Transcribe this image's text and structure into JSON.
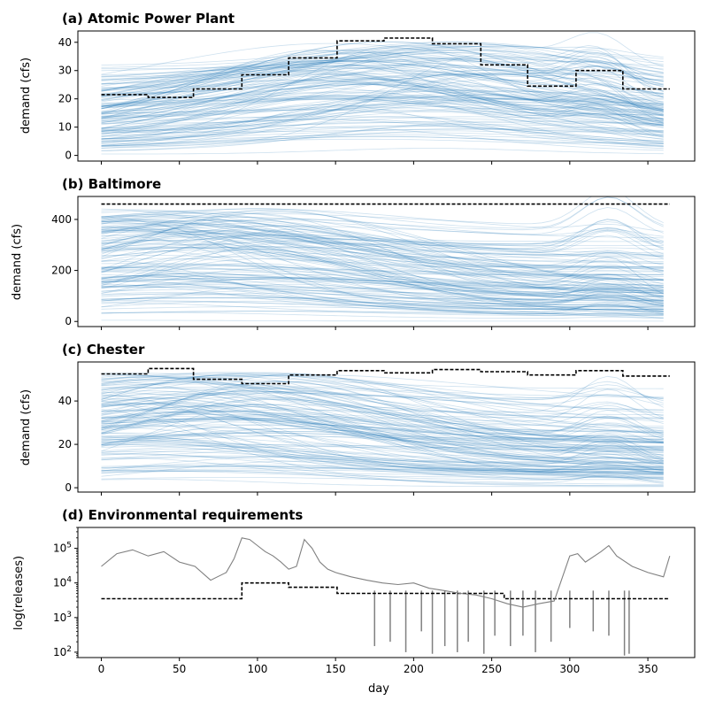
{
  "figure": {
    "colors": {
      "ensemble": "#1f77b4",
      "releases": "#808080",
      "requirement": "#000000"
    }
  },
  "chart_data": [
    {
      "type": "line",
      "title": "(a) Atomic Power Plant",
      "xlabel": "",
      "ylabel": "demand (cfs)",
      "xlim": [
        -15,
        380
      ],
      "ylim": [
        -2,
        44
      ],
      "xticks": [
        0,
        50,
        100,
        150,
        200,
        250,
        300,
        350
      ],
      "yticks": [
        0,
        10,
        20,
        30,
        40
      ],
      "show_xtick_labels": false,
      "grid": false,
      "series": [
        {
          "style": "dashed",
          "color": "#000000",
          "x": [
            0,
            30,
            30,
            59,
            59,
            90,
            90,
            120,
            120,
            151,
            151,
            181,
            181,
            212,
            212,
            243,
            243,
            273,
            273,
            304,
            304,
            334,
            334,
            364
          ],
          "y": [
            21.5,
            21.5,
            20.5,
            20.5,
            23.5,
            23.5,
            28.5,
            28.5,
            34.5,
            34.5,
            40.5,
            40.5,
            41.5,
            41.5,
            39.5,
            39.5,
            32,
            32,
            24.5,
            24.5,
            30,
            30,
            23.5,
            23.5
          ]
        }
      ],
      "ensemble": {
        "count": 140,
        "color": "#1f77b4",
        "x_range": [
          0,
          364
        ],
        "peak_day": 190,
        "late_bump_day": 318
      }
    },
    {
      "type": "line",
      "title": "(b) Baltimore",
      "xlabel": "",
      "ylabel": "demand (cfs)",
      "xlim": [
        -15,
        380
      ],
      "ylim": [
        -20,
        490
      ],
      "xticks": [
        0,
        50,
        100,
        150,
        200,
        250,
        300,
        350
      ],
      "yticks": [
        0,
        200,
        400
      ],
      "show_xtick_labels": false,
      "grid": false,
      "series": [
        {
          "style": "dashed",
          "color": "#000000",
          "x": [
            0,
            364
          ],
          "y": [
            460,
            460
          ]
        }
      ],
      "ensemble": {
        "count": 140,
        "color": "#1f77b4",
        "x_range": [
          0,
          364
        ],
        "peak_day": 60,
        "late_bump_day": 325
      }
    },
    {
      "type": "line",
      "title": "(c) Chester",
      "xlabel": "",
      "ylabel": "demand (cfs)",
      "xlim": [
        -15,
        380
      ],
      "ylim": [
        -2,
        58
      ],
      "xticks": [
        0,
        50,
        100,
        150,
        200,
        250,
        300,
        350
      ],
      "yticks": [
        0,
        20,
        40
      ],
      "show_xtick_labels": false,
      "grid": false,
      "series": [
        {
          "style": "dashed",
          "color": "#000000",
          "x": [
            0,
            30,
            30,
            59,
            59,
            90,
            90,
            120,
            120,
            151,
            151,
            181,
            181,
            212,
            212,
            243,
            243,
            273,
            273,
            304,
            304,
            334,
            334,
            364
          ],
          "y": [
            52.5,
            52.5,
            55,
            55,
            50,
            50,
            48,
            48,
            52,
            52,
            54,
            54,
            53,
            53,
            54.5,
            54.5,
            53.5,
            53.5,
            52,
            52,
            54,
            54,
            51.5,
            51.5
          ]
        }
      ],
      "ensemble": {
        "count": 140,
        "color": "#1f77b4",
        "x_range": [
          0,
          364
        ],
        "peak_day": 60,
        "late_bump_day": 325
      }
    },
    {
      "type": "line",
      "title": "(d) Environmental requirements",
      "xlabel": "day",
      "ylabel": "log(releases)",
      "xlim": [
        -15,
        380
      ],
      "ylim": [
        70,
        400000
      ],
      "yscale": "log",
      "xticks": [
        0,
        50,
        100,
        150,
        200,
        250,
        300,
        350
      ],
      "yticks": [
        100,
        1000,
        10000,
        100000
      ],
      "ytick_labels": [
        {
          "base": "10",
          "exp": "2"
        },
        {
          "base": "10",
          "exp": "3"
        },
        {
          "base": "10",
          "exp": "4"
        },
        {
          "base": "10",
          "exp": "5"
        }
      ],
      "show_xtick_labels": true,
      "grid": false,
      "series": [
        {
          "style": "dashed",
          "color": "#000000",
          "x": [
            0,
            90,
            90,
            120,
            120,
            151,
            151,
            258,
            258,
            364
          ],
          "y": [
            3500,
            3500,
            10000,
            10000,
            7500,
            7500,
            5000,
            5000,
            3500,
            3500
          ]
        },
        {
          "style": "solid",
          "color": "#808080",
          "x": [
            0,
            10,
            20,
            30,
            40,
            50,
            60,
            70,
            80,
            85,
            90,
            95,
            100,
            105,
            110,
            115,
            120,
            125,
            130,
            135,
            140,
            145,
            150,
            160,
            170,
            180,
            190,
            200,
            210,
            220,
            230,
            240,
            250,
            260,
            270,
            280,
            290,
            300,
            305,
            310,
            320,
            325,
            330,
            340,
            350,
            360,
            364
          ],
          "y": [
            30000,
            70000,
            90000,
            60000,
            80000,
            40000,
            30000,
            12000,
            20000,
            50000,
            200000,
            180000,
            120000,
            80000,
            60000,
            40000,
            25000,
            30000,
            180000,
            100000,
            40000,
            25000,
            20000,
            15000,
            12000,
            10000,
            9000,
            10000,
            7000,
            6000,
            5000,
            4500,
            3500,
            2500,
            2000,
            2500,
            3000,
            60000,
            70000,
            40000,
            80000,
            120000,
            60000,
            30000,
            20000,
            15000,
            60000
          ]
        }
      ],
      "dips": [
        {
          "x": 175,
          "low": 150
        },
        {
          "x": 185,
          "low": 200
        },
        {
          "x": 195,
          "low": 100
        },
        {
          "x": 205,
          "low": 400
        },
        {
          "x": 212,
          "low": 90
        },
        {
          "x": 220,
          "low": 150
        },
        {
          "x": 228,
          "low": 100
        },
        {
          "x": 235,
          "low": 200
        },
        {
          "x": 245,
          "low": 90
        },
        {
          "x": 252,
          "low": 300
        },
        {
          "x": 262,
          "low": 150
        },
        {
          "x": 270,
          "low": 300
        },
        {
          "x": 278,
          "low": 100
        },
        {
          "x": 288,
          "low": 200
        },
        {
          "x": 300,
          "low": 500
        },
        {
          "x": 315,
          "low": 400
        },
        {
          "x": 325,
          "low": 300
        },
        {
          "x": 335,
          "low": 80
        },
        {
          "x": 338,
          "low": 90
        }
      ]
    }
  ]
}
